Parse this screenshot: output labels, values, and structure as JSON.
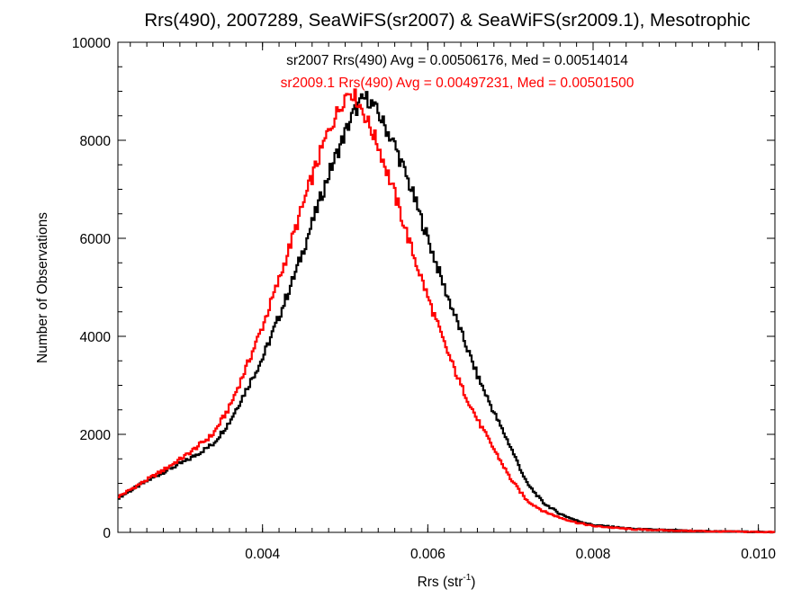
{
  "chart_data": {
    "type": "line",
    "title": "Rrs(490), 2007289, SeaWiFS(sr2007) & SeaWiFS(sr2009.1), Mesotrophic",
    "xlabel_main": "Rrs (str",
    "xlabel_sup": "-1",
    "xlabel_close": ")",
    "ylabel": "Number of Observations",
    "xlim": [
      0.00225,
      0.0102
    ],
    "ylim": [
      0,
      10000
    ],
    "xticks": [
      0.004,
      0.006,
      0.008,
      0.01
    ],
    "xtick_labels": [
      "0.004",
      "0.006",
      "0.008",
      "0.010"
    ],
    "yticks": [
      0,
      2000,
      4000,
      6000,
      8000,
      10000
    ],
    "ytick_labels": [
      "0",
      "2000",
      "4000",
      "6000",
      "8000",
      "10000"
    ],
    "x_minor_step": 0.0002,
    "y_minor_step": 500,
    "step_histogram": true,
    "grid": false,
    "series": [
      {
        "name": "sr2007",
        "color": "#000000",
        "annotation": "sr2007 Rrs(490) Avg = 0.00506176, Med = 0.00514014",
        "points": [
          [
            0.00225,
            700
          ],
          [
            0.0025,
            950
          ],
          [
            0.0028,
            1230
          ],
          [
            0.0031,
            1480
          ],
          [
            0.0034,
            1800
          ],
          [
            0.0036,
            2250
          ],
          [
            0.0038,
            2900
          ],
          [
            0.004,
            3550
          ],
          [
            0.0042,
            4400
          ],
          [
            0.0044,
            5300
          ],
          [
            0.0046,
            6300
          ],
          [
            0.0048,
            7300
          ],
          [
            0.005,
            8150
          ],
          [
            0.0051,
            8550
          ],
          [
            0.0052,
            8800
          ],
          [
            0.00525,
            8870
          ],
          [
            0.0053,
            8800
          ],
          [
            0.0054,
            8550
          ],
          [
            0.0056,
            7900
          ],
          [
            0.0058,
            7000
          ],
          [
            0.006,
            6000
          ],
          [
            0.0062,
            5000
          ],
          [
            0.0064,
            4100
          ],
          [
            0.0066,
            3200
          ],
          [
            0.0068,
            2450
          ],
          [
            0.007,
            1750
          ],
          [
            0.0072,
            1000
          ],
          [
            0.0074,
            600
          ],
          [
            0.0076,
            380
          ],
          [
            0.0078,
            240
          ],
          [
            0.008,
            150
          ],
          [
            0.0085,
            70
          ],
          [
            0.009,
            40
          ],
          [
            0.0095,
            20
          ],
          [
            0.0102,
            5
          ]
        ]
      },
      {
        "name": "sr2009.1",
        "color": "#ff0000",
        "annotation": "sr2009.1 Rrs(490) Avg = 0.00497231, Med = 0.00501500",
        "points": [
          [
            0.00225,
            720
          ],
          [
            0.0025,
            970
          ],
          [
            0.0028,
            1270
          ],
          [
            0.0031,
            1600
          ],
          [
            0.0034,
            2000
          ],
          [
            0.0036,
            2550
          ],
          [
            0.0038,
            3350
          ],
          [
            0.004,
            4200
          ],
          [
            0.0042,
            5150
          ],
          [
            0.0044,
            6200
          ],
          [
            0.0046,
            7250
          ],
          [
            0.0048,
            8200
          ],
          [
            0.005,
            8900
          ],
          [
            0.00505,
            9000
          ],
          [
            0.0051,
            8950
          ],
          [
            0.0052,
            8650
          ],
          [
            0.0054,
            7900
          ],
          [
            0.0056,
            6900
          ],
          [
            0.0058,
            5800
          ],
          [
            0.006,
            4800
          ],
          [
            0.0062,
            3850
          ],
          [
            0.0064,
            3000
          ],
          [
            0.0066,
            2300
          ],
          [
            0.0068,
            1700
          ],
          [
            0.007,
            1100
          ],
          [
            0.0072,
            650
          ],
          [
            0.0074,
            430
          ],
          [
            0.0076,
            300
          ],
          [
            0.0078,
            200
          ],
          [
            0.008,
            130
          ],
          [
            0.0085,
            60
          ],
          [
            0.009,
            35
          ],
          [
            0.0095,
            18
          ],
          [
            0.0102,
            5
          ]
        ]
      }
    ]
  }
}
